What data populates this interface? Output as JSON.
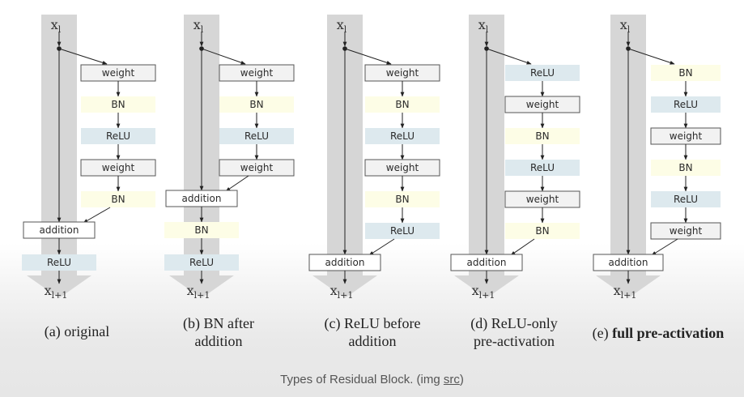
{
  "variants": [
    {
      "id": "a",
      "input_label": "x",
      "input_sub": "l",
      "output_label": "x",
      "output_sub": "l+1",
      "caption_lines": [
        "(a) original"
      ],
      "caption_bold": false,
      "branch": [
        {
          "label": "weight",
          "kind": "weight"
        },
        {
          "label": "BN",
          "kind": "bn"
        },
        {
          "label": "ReLU",
          "kind": "relu"
        },
        {
          "label": "weight",
          "kind": "weight"
        },
        {
          "label": "BN",
          "kind": "bn"
        }
      ],
      "addition_label": "addition",
      "after_add": [
        {
          "label": "ReLU",
          "kind": "relu"
        }
      ]
    },
    {
      "id": "b",
      "input_label": "x",
      "input_sub": "l",
      "output_label": "x",
      "output_sub": "l+1",
      "caption_lines": [
        "(b) BN after",
        "addition"
      ],
      "caption_bold": false,
      "branch": [
        {
          "label": "weight",
          "kind": "weight"
        },
        {
          "label": "BN",
          "kind": "bn"
        },
        {
          "label": "ReLU",
          "kind": "relu"
        },
        {
          "label": "weight",
          "kind": "weight"
        }
      ],
      "addition_label": "addition",
      "after_add": [
        {
          "label": "BN",
          "kind": "bn"
        },
        {
          "label": "ReLU",
          "kind": "relu"
        }
      ]
    },
    {
      "id": "c",
      "input_label": "x",
      "input_sub": "l",
      "output_label": "x",
      "output_sub": "l+1",
      "caption_lines": [
        "(c) ReLU before",
        "addition"
      ],
      "caption_bold": false,
      "branch": [
        {
          "label": "weight",
          "kind": "weight"
        },
        {
          "label": "BN",
          "kind": "bn"
        },
        {
          "label": "ReLU",
          "kind": "relu"
        },
        {
          "label": "weight",
          "kind": "weight"
        },
        {
          "label": "BN",
          "kind": "bn"
        },
        {
          "label": "ReLU",
          "kind": "relu"
        }
      ],
      "addition_label": "addition",
      "after_add": []
    },
    {
      "id": "d",
      "input_label": "x",
      "input_sub": "l",
      "output_label": "x",
      "output_sub": "l+1",
      "caption_lines": [
        "(d) ReLU-only",
        "pre-activation"
      ],
      "caption_bold": false,
      "branch": [
        {
          "label": "ReLU",
          "kind": "relu"
        },
        {
          "label": "weight",
          "kind": "weight"
        },
        {
          "label": "BN",
          "kind": "bn"
        },
        {
          "label": "ReLU",
          "kind": "relu"
        },
        {
          "label": "weight",
          "kind": "weight"
        },
        {
          "label": "BN",
          "kind": "bn"
        }
      ],
      "addition_label": "addition",
      "after_add": []
    },
    {
      "id": "e",
      "input_label": "x",
      "input_sub": "l",
      "output_label": "x",
      "output_sub": "l+1",
      "caption_lines": [
        "(e) full pre-activation"
      ],
      "caption_bold": true,
      "caption_prefix": "(e) ",
      "caption_main": "full pre-activation",
      "branch": [
        {
          "label": "BN",
          "kind": "bn"
        },
        {
          "label": "ReLU",
          "kind": "relu"
        },
        {
          "label": "weight",
          "kind": "weight"
        },
        {
          "label": "BN",
          "kind": "bn"
        },
        {
          "label": "ReLU",
          "kind": "relu"
        },
        {
          "label": "weight",
          "kind": "weight"
        }
      ],
      "addition_label": "addition",
      "after_add": []
    }
  ],
  "colors": {
    "weight_fill": "#f2f2f2",
    "weight_stroke": "#555555",
    "bn_fill": "#fdfde6",
    "relu_fill": "#dde9ee",
    "shaft": "#d6d6d6",
    "line": "#222222"
  },
  "footer": {
    "text": "Types of Residual Block. (img ",
    "link": "src",
    "close": ")"
  }
}
